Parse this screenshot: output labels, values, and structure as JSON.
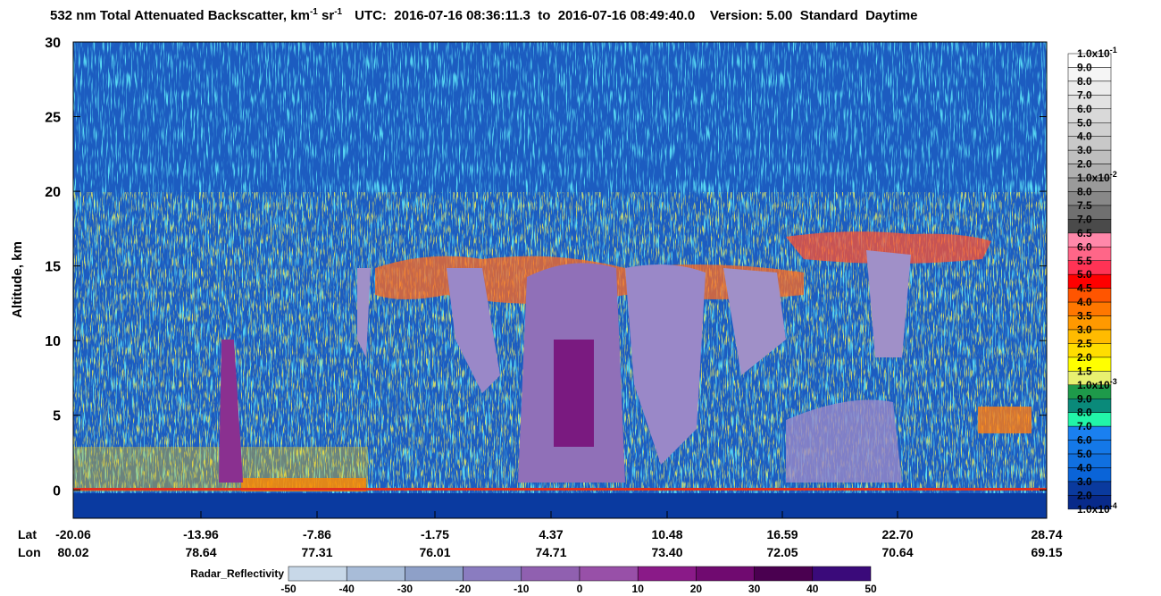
{
  "chart_data": {
    "type": "heatmap",
    "title": {
      "text": "532 nm Total Attenuated Backscatter, km",
      "sup1": "-1",
      "text2": " sr",
      "sup2": "-1",
      "rest": "UTC:  2016-07-16 08:36:11.3  to  2016-07-16 08:49:40.0    Version: 5.00  Standard  Daytime"
    },
    "ylabel": "Altitude, km",
    "ylim": [
      -1.9,
      30
    ],
    "yticks": [
      0,
      5,
      10,
      15,
      20,
      25,
      30
    ],
    "lat_label": "Lat",
    "lon_label": "Lon",
    "lat": [
      "-20.06",
      "-13.96",
      "-7.86",
      "-1.75",
      "4.37",
      "10.48",
      "16.59",
      "22.70",
      "28.74"
    ],
    "lon": [
      "80.02",
      "78.64",
      "77.31",
      "76.01",
      "74.71",
      "73.40",
      "72.05",
      "70.64",
      "69.15"
    ],
    "colorbar": {
      "levels": [
        {
          "label": "1.0x10",
          "exponent": "-1"
        },
        "9.0",
        "8.0",
        "7.0",
        "6.0",
        "5.0",
        "4.0",
        "3.0",
        "2.0",
        {
          "label": "1.0x10",
          "exponent": "-2"
        },
        "8.0",
        "7.5",
        "7.0",
        "6.5",
        "6.0",
        "5.5",
        "5.0",
        "4.5",
        "4.0",
        "3.5",
        "3.0",
        "2.5",
        "2.0",
        "1.5",
        {
          "label": "1.0x10",
          "exponent": "-3"
        },
        "9.0",
        "8.0",
        "7.0",
        "6.0",
        "5.0",
        "4.0",
        "3.0",
        "2.0",
        {
          "label": "1.0x10",
          "exponent": "-4"
        }
      ],
      "colors": [
        "#ffffff",
        "#f5f5f5",
        "#ececec",
        "#e2e2e2",
        "#d9d9d9",
        "#d0d0d0",
        "#c8c8c8",
        "#bebebe",
        "#b0b0b0",
        "#9a9a9a",
        "#888888",
        "#707070",
        "#4a4a4a",
        "#ff88aa",
        "#ff6688",
        "#ff3355",
        "#ff0000",
        "#ff5500",
        "#ff7700",
        "#ff9900",
        "#ffbb00",
        "#ffdd00",
        "#ffff00",
        "#e8f070",
        "#1e9a4a",
        "#0a8a7a",
        "#22f5a8",
        "#1a80f0",
        "#1478e8",
        "#1070e0",
        "#0a64d8",
        "#0a3a9e",
        "#082a8a"
      ]
    },
    "radar": {
      "label": "Radar_Reflectivity",
      "ticks": [
        -50,
        -40,
        -30,
        -20,
        -10,
        0,
        10,
        20,
        30,
        40,
        50
      ],
      "colors": [
        "#c8d8e8",
        "#a8bcd8",
        "#8ea0c8",
        "#8a7cc0",
        "#9060b0",
        "#9850a8",
        "#8a1a88",
        "#700a70",
        "#4a0050",
        "#3a0a7a"
      ]
    }
  }
}
